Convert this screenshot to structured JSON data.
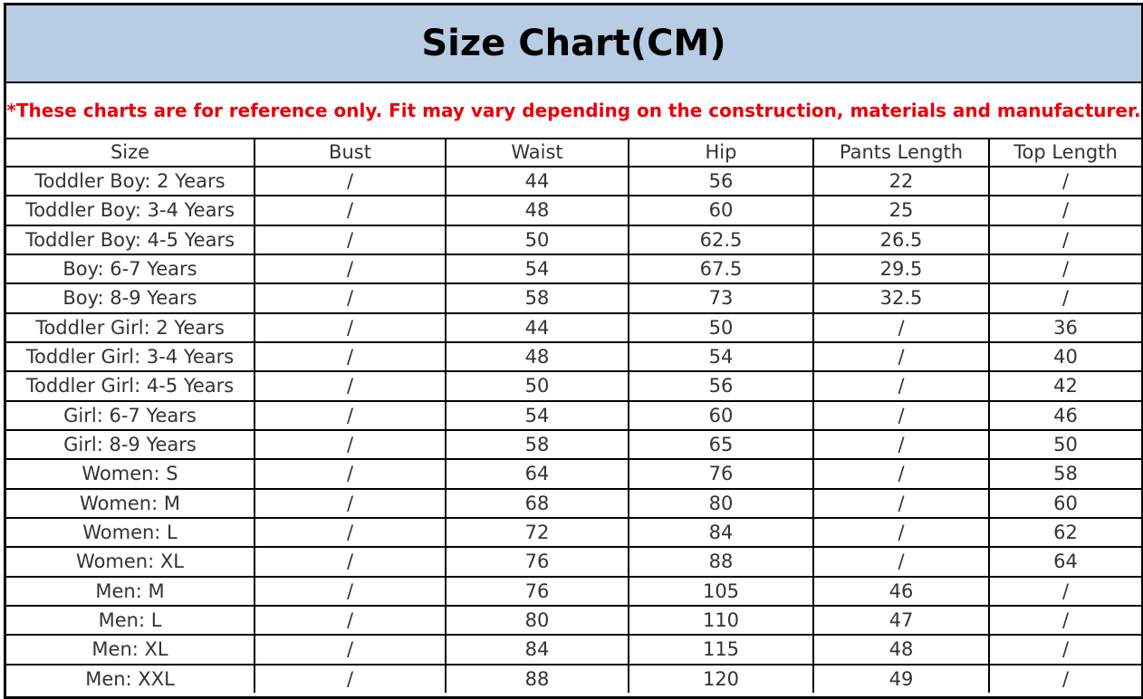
{
  "title": "Size Chart(CM)",
  "note": "*These charts are for reference only. Fit may vary depending on the construction, materials and manufacturer.",
  "colors": {
    "title_background": "#b8cce4",
    "note_text": "#e8000b"
  },
  "table": {
    "headers": [
      "Size",
      "Bust",
      "Waist",
      "Hip",
      "Pants Length",
      "Top Length"
    ],
    "rows": [
      [
        "Toddler Boy: 2 Years",
        "/",
        "44",
        "56",
        "22",
        "/"
      ],
      [
        "Toddler Boy: 3-4 Years",
        "/",
        "48",
        "60",
        "25",
        "/"
      ],
      [
        "Toddler Boy: 4-5 Years",
        "/",
        "50",
        "62.5",
        "26.5",
        "/"
      ],
      [
        "Boy: 6-7 Years",
        "/",
        "54",
        "67.5",
        "29.5",
        "/"
      ],
      [
        "Boy: 8-9 Years",
        "/",
        "58",
        "73",
        "32.5",
        "/"
      ],
      [
        "Toddler Girl: 2 Years",
        "/",
        "44",
        "50",
        "/",
        "36"
      ],
      [
        "Toddler Girl: 3-4 Years",
        "/",
        "48",
        "54",
        "/",
        "40"
      ],
      [
        "Toddler Girl: 4-5 Years",
        "/",
        "50",
        "56",
        "/",
        "42"
      ],
      [
        "Girl: 6-7 Years",
        "/",
        "54",
        "60",
        "/",
        "46"
      ],
      [
        "Girl: 8-9 Years",
        "/",
        "58",
        "65",
        "/",
        "50"
      ],
      [
        "Women: S",
        "/",
        "64",
        "76",
        "/",
        "58"
      ],
      [
        "Women: M",
        "/",
        "68",
        "80",
        "/",
        "60"
      ],
      [
        "Women: L",
        "/",
        "72",
        "84",
        "/",
        "62"
      ],
      [
        "Women: XL",
        "/",
        "76",
        "88",
        "/",
        "64"
      ],
      [
        "Men: M",
        "/",
        "76",
        "105",
        "46",
        "/"
      ],
      [
        "Men: L",
        "/",
        "80",
        "110",
        "47",
        "/"
      ],
      [
        "Men: XL",
        "/",
        "84",
        "115",
        "48",
        "/"
      ],
      [
        "Men: XXL",
        "/",
        "88",
        "120",
        "49",
        "/"
      ]
    ]
  }
}
